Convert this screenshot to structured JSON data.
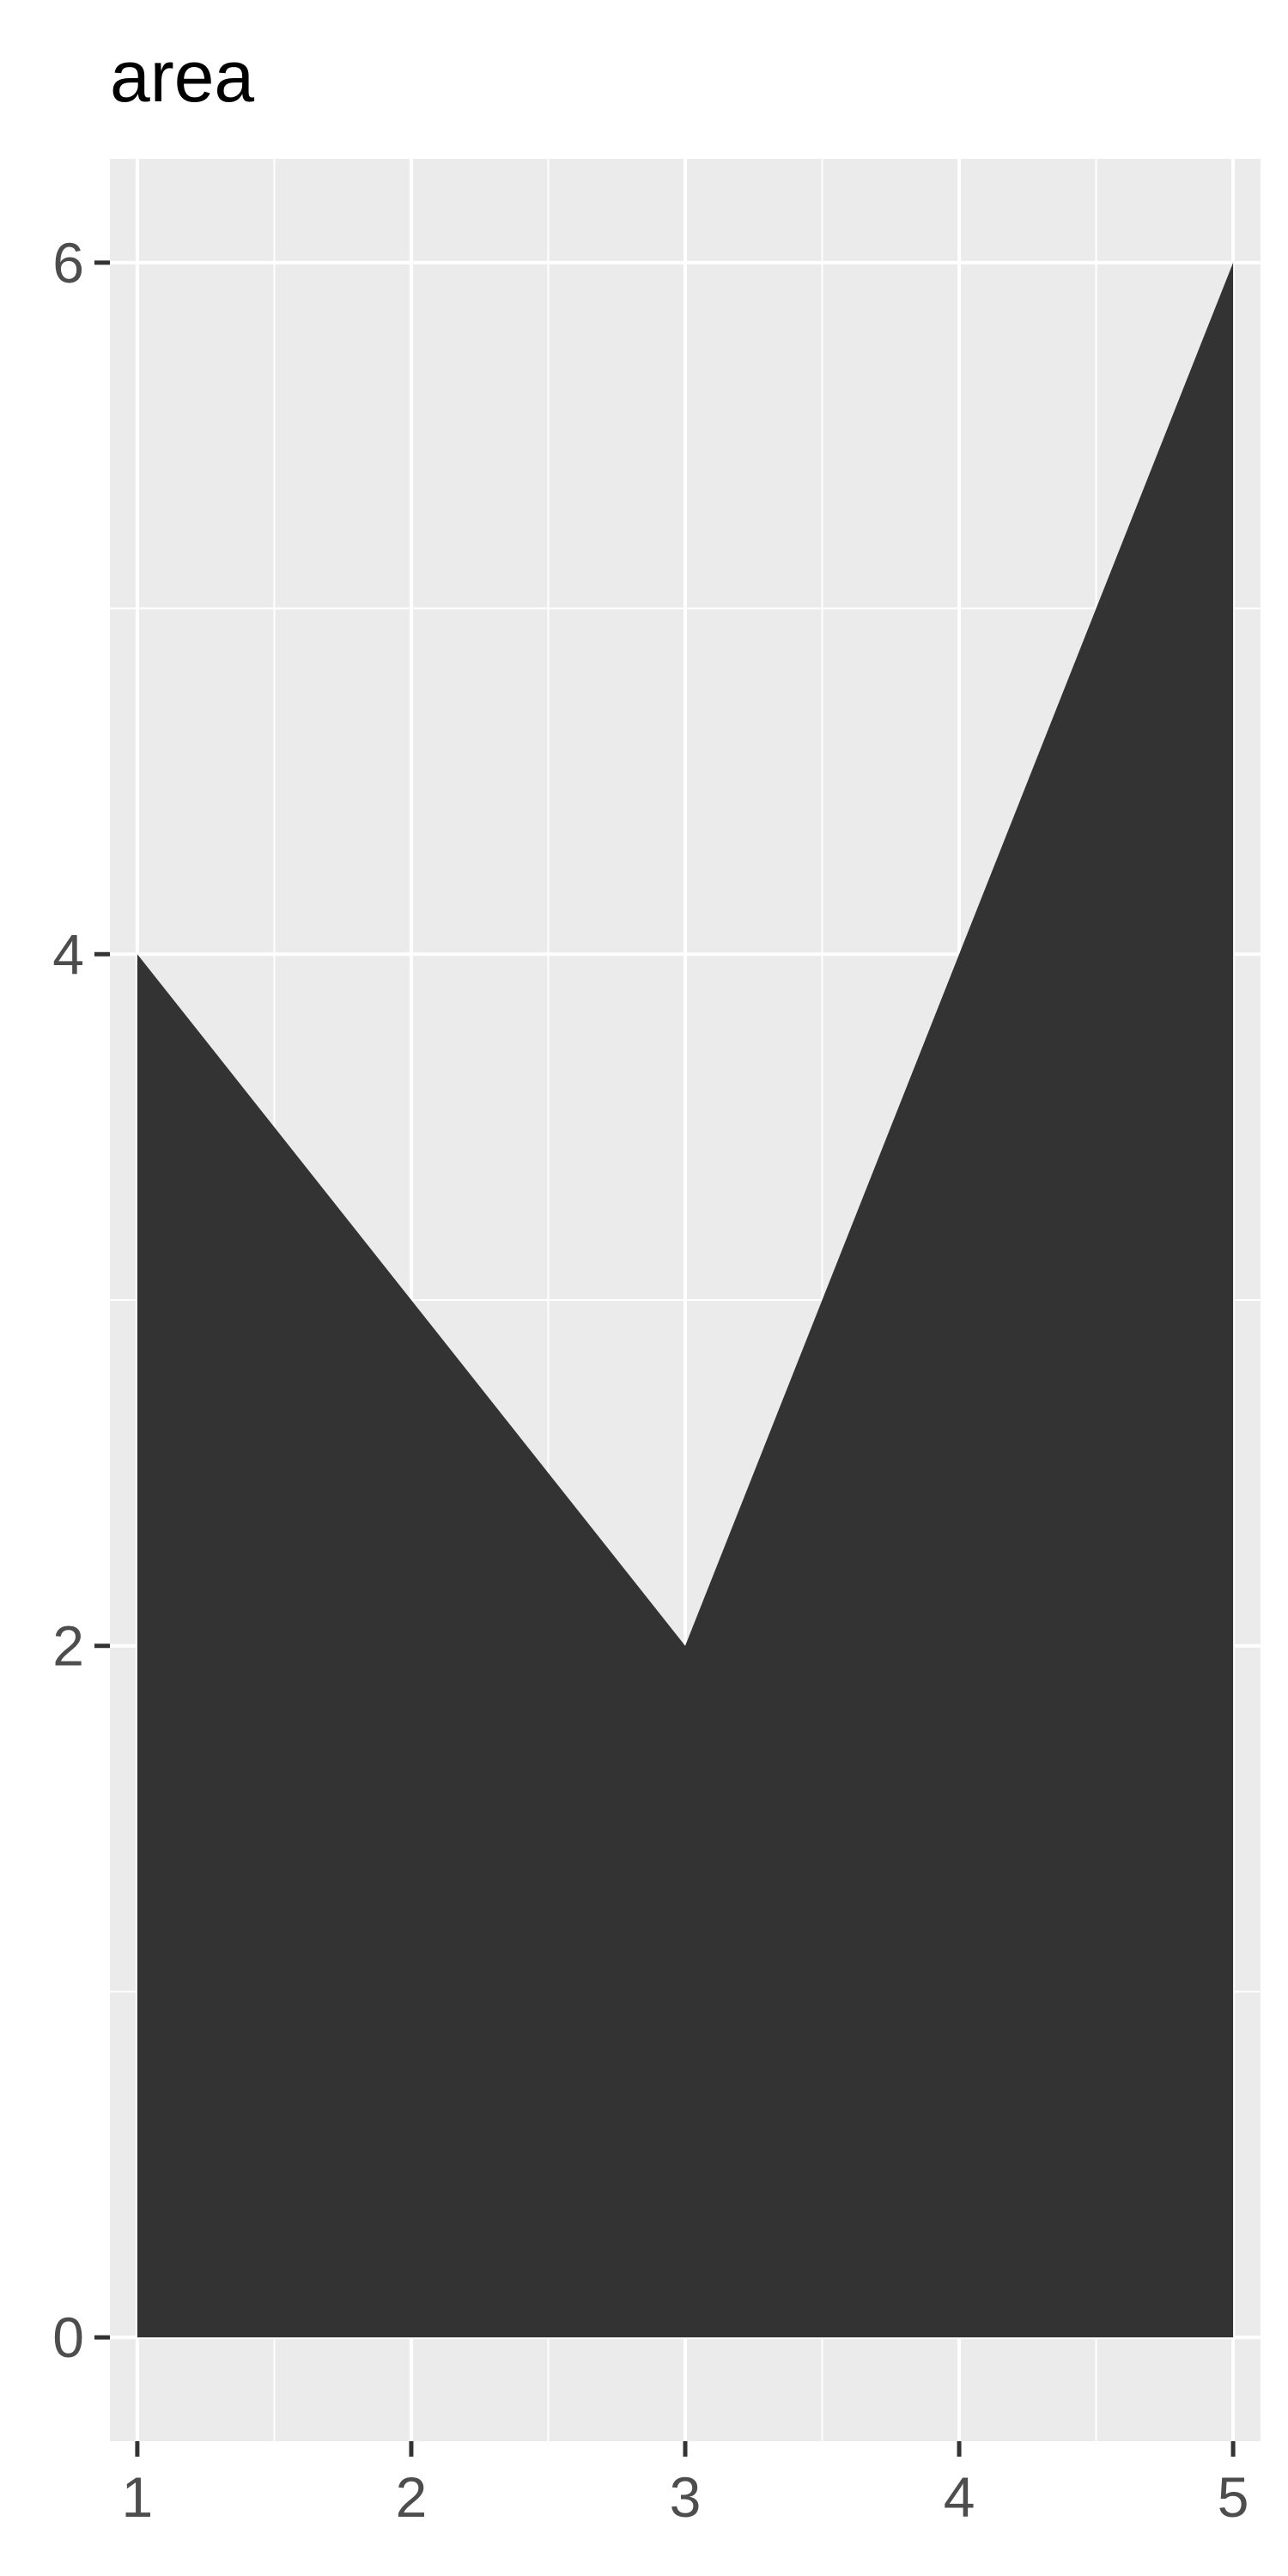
{
  "chart_data": {
    "type": "area",
    "title": "area",
    "xlabel": "",
    "ylabel": "",
    "x": [
      1,
      2,
      3,
      4,
      5
    ],
    "series": [
      {
        "values": [
          4,
          3,
          2,
          4,
          6
        ]
      }
    ],
    "xlim": [
      0.9,
      5.1
    ],
    "ylim": [
      -0.3,
      6.3
    ],
    "x_ticks": [
      1,
      2,
      3,
      4,
      5
    ],
    "x_tick_labels": [
      "1",
      "2",
      "3",
      "4",
      "5"
    ],
    "y_ticks": [
      0,
      2,
      4,
      6
    ],
    "y_tick_labels": [
      "0",
      "2",
      "4",
      "6"
    ],
    "y_minor_ticks": [
      1,
      3,
      5
    ],
    "x_minor_ticks": [
      1.5,
      2.5,
      3.5,
      4.5
    ],
    "grid": true,
    "legend": "none",
    "colors": {
      "panel_background": "#ebebeb",
      "grid_line": "#ffffff",
      "area_fill": "#333333",
      "tick_mark": "#333333",
      "tick_label": "#4d4d4d",
      "title": "#000000"
    }
  }
}
